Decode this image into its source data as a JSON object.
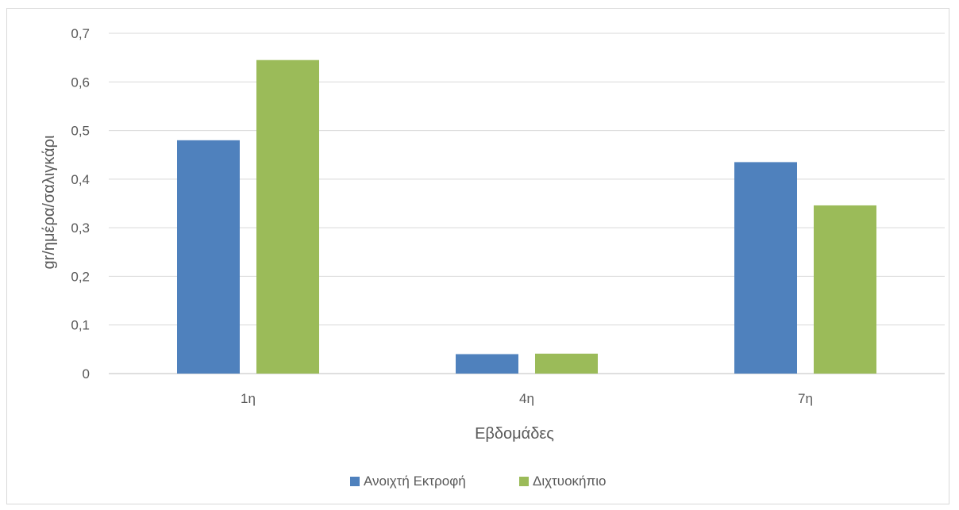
{
  "chart_data": {
    "type": "bar",
    "title": "",
    "xlabel": "Εβδομάδες",
    "ylabel": "gr/ημέρα/σαλιγκάρι",
    "categories": [
      "1η",
      "4η",
      "7η"
    ],
    "series": [
      {
        "name": "Ανοιχτή Εκτροφή",
        "color": "#4f81bd",
        "values": [
          0.48,
          0.04,
          0.435
        ]
      },
      {
        "name": "Διχτυοκήπιο",
        "color": "#9bbb59",
        "values": [
          0.645,
          0.041,
          0.346
        ]
      }
    ],
    "ylim": [
      0,
      0.7
    ],
    "yticks": [
      "0",
      "0,1",
      "0,2",
      "0,3",
      "0,4",
      "0,5",
      "0,6",
      "0,7"
    ],
    "grid": true,
    "legend_position": "bottom",
    "gridline_color": "#d9d9d9",
    "axis_line_color": "#bfbfbf",
    "text_color": "#595959"
  }
}
